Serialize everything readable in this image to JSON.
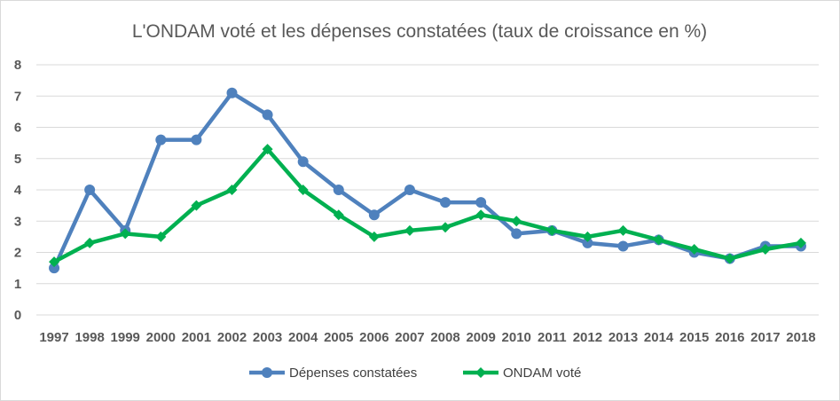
{
  "chart_data": {
    "type": "line",
    "title": "L'ONDAM voté et les dépenses constatées (taux de croissance en %)",
    "xlabel": "",
    "ylabel": "",
    "ylim": [
      0,
      8
    ],
    "yticks": [
      "0",
      "1",
      "2",
      "3",
      "4",
      "5",
      "6",
      "7",
      "8"
    ],
    "grid": true,
    "legend_position": "bottom",
    "categories": [
      "1997",
      "1998",
      "1999",
      "2000",
      "2001",
      "2002",
      "2003",
      "2004",
      "2005",
      "2006",
      "2007",
      "2008",
      "2009",
      "2010",
      "2011",
      "2012",
      "2013",
      "2014",
      "2015",
      "2016",
      "2017",
      "2018"
    ],
    "series": [
      {
        "name": "Dépenses constatées",
        "color": "#4f81bd",
        "marker": "circle",
        "values": [
          1.5,
          4.0,
          2.7,
          5.6,
          5.6,
          7.1,
          6.4,
          4.9,
          4.0,
          3.2,
          4.0,
          3.6,
          3.6,
          2.6,
          2.7,
          2.3,
          2.2,
          2.4,
          2.0,
          1.8,
          2.2,
          2.2
        ]
      },
      {
        "name": "ONDAM voté",
        "color": "#00b050",
        "marker": "diamond",
        "values": [
          1.7,
          2.3,
          2.6,
          2.5,
          3.5,
          4.0,
          5.3,
          4.0,
          3.2,
          2.5,
          2.7,
          2.8,
          3.2,
          3.0,
          2.7,
          2.5,
          2.7,
          2.4,
          2.1,
          1.8,
          2.1,
          2.3
        ]
      }
    ]
  }
}
